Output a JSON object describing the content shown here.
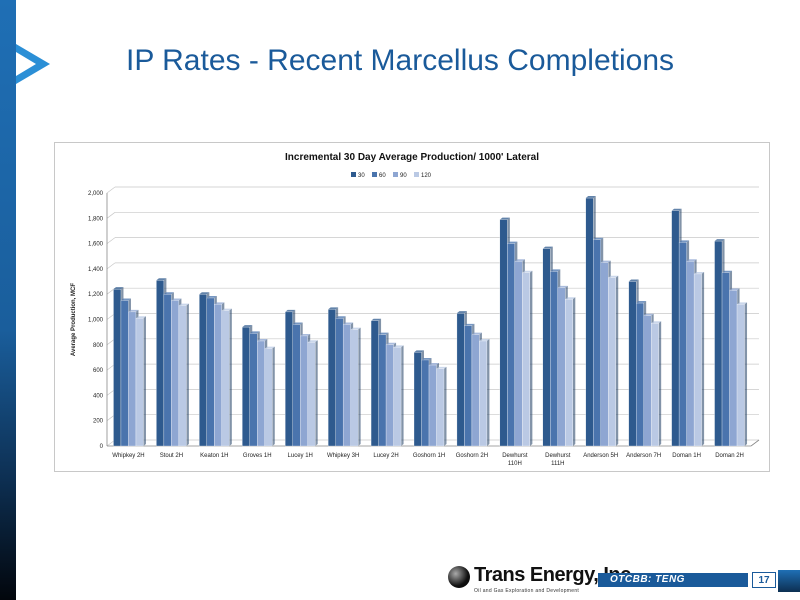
{
  "slide": {
    "title": "IP Rates - Recent Marcellus Completions",
    "footer_ticker": "OTCBB: TENG",
    "page_number": "17",
    "logo_text": "Trans Energy, Inc.",
    "logo_tagline": "Oil and Gas Exploration and Development"
  },
  "colors": {
    "title": "#1a5a9a",
    "series": [
      "#2e5a8e",
      "#4a74ad",
      "#8ea6d2",
      "#bac9e4"
    ]
  },
  "chart_data": {
    "type": "bar",
    "title": "Incremental 30 Day Average Production/ 1000' Lateral",
    "ylabel": "Average Production, MCF",
    "xlabel": "",
    "ylim": [
      0,
      2000
    ],
    "yticks": [
      "0",
      "200",
      "400",
      "600",
      "800",
      "1,000",
      "1,200",
      "1,400",
      "1,600",
      "1,800",
      "2,000"
    ],
    "grid": true,
    "legend_position": "top",
    "categories": [
      [
        "Whipkey 2H"
      ],
      [
        "Stout 2H"
      ],
      [
        "Keaton 1H"
      ],
      [
        "Groves 1H"
      ],
      [
        "Lucey 1H"
      ],
      [
        "Whipkey 3H"
      ],
      [
        "Lucey 2H"
      ],
      [
        "Goshorn 1H"
      ],
      [
        "Goshorn 2H"
      ],
      [
        "Dewhurst",
        "110H"
      ],
      [
        "Dewhurst",
        "111H"
      ],
      [
        "Anderson 5H"
      ],
      [
        "Anderson 7H"
      ],
      [
        "Doman 1H"
      ],
      [
        "Doman 2H"
      ]
    ],
    "series": [
      {
        "name": "30",
        "values": [
          1240,
          1310,
          1200,
          940,
          1060,
          1080,
          990,
          740,
          1050,
          1790,
          1560,
          1960,
          1300,
          1860,
          1620
        ]
      },
      {
        "name": "60",
        "values": [
          1150,
          1200,
          1170,
          890,
          960,
          1010,
          880,
          680,
          950,
          1600,
          1380,
          1630,
          1130,
          1610,
          1370
        ]
      },
      {
        "name": "90",
        "values": [
          1060,
          1150,
          1120,
          830,
          870,
          960,
          800,
          640,
          880,
          1460,
          1250,
          1450,
          1030,
          1460,
          1230
        ]
      },
      {
        "name": "120",
        "values": [
          1010,
          1110,
          1070,
          770,
          820,
          920,
          780,
          610,
          830,
          1370,
          1160,
          1330,
          970,
          1360,
          1120
        ]
      }
    ]
  }
}
